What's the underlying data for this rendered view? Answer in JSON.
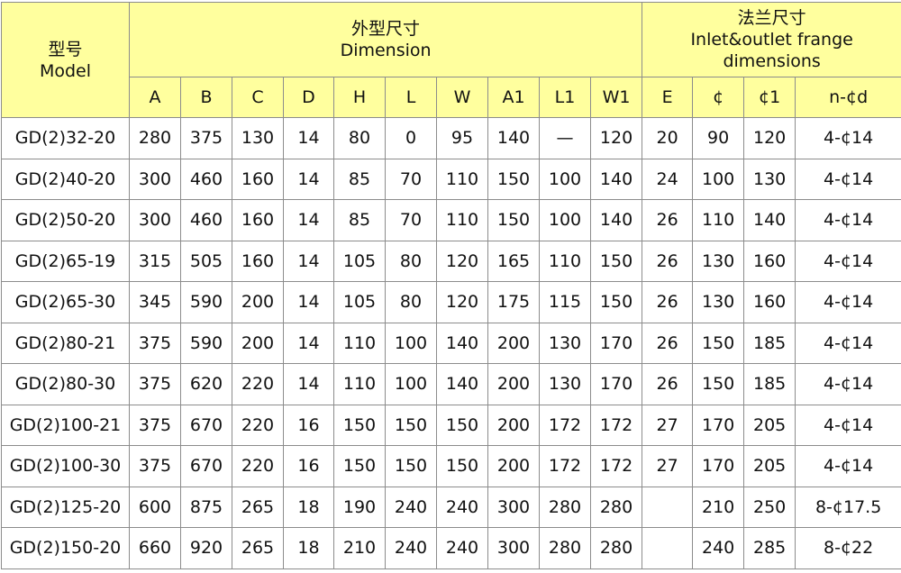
{
  "header": {
    "model_cn": "型号",
    "model_en": "Model",
    "dimension_cn": "外型尺寸",
    "dimension_en": "Dimension",
    "flange_cn": "法兰尺寸",
    "flange_en1": "Inlet&outlet frange",
    "flange_en2": "dimensions",
    "columns": [
      "A",
      "B",
      "C",
      "D",
      "H",
      "L",
      "W",
      "A1",
      "L1",
      "W1",
      "E",
      "¢",
      "¢1",
      "n-¢d"
    ]
  },
  "colors": {
    "header_bg": "#ffff9e",
    "border": "#8c8c8c"
  },
  "rows": [
    [
      "GD(2)32-20",
      "280",
      "375",
      "130",
      "14",
      "80",
      "0",
      "95",
      "140",
      "—",
      "120",
      "20",
      "90",
      "120",
      "4-¢14"
    ],
    [
      "GD(2)40-20",
      "300",
      "460",
      "160",
      "14",
      "85",
      "70",
      "110",
      "150",
      "100",
      "140",
      "24",
      "100",
      "130",
      "4-¢14"
    ],
    [
      "GD(2)50-20",
      "300",
      "460",
      "160",
      "14",
      "85",
      "70",
      "110",
      "150",
      "100",
      "140",
      "26",
      "110",
      "140",
      "4-¢14"
    ],
    [
      "GD(2)65-19",
      "315",
      "505",
      "160",
      "14",
      "105",
      "80",
      "120",
      "165",
      "110",
      "150",
      "26",
      "130",
      "160",
      "4-¢14"
    ],
    [
      "GD(2)65-30",
      "345",
      "590",
      "200",
      "14",
      "105",
      "80",
      "120",
      "175",
      "115",
      "150",
      "26",
      "130",
      "160",
      "4-¢14"
    ],
    [
      "GD(2)80-21",
      "375",
      "590",
      "200",
      "14",
      "110",
      "100",
      "140",
      "200",
      "130",
      "170",
      "26",
      "150",
      "185",
      "4-¢14"
    ],
    [
      "GD(2)80-30",
      "375",
      "620",
      "220",
      "14",
      "110",
      "100",
      "140",
      "200",
      "130",
      "170",
      "26",
      "150",
      "185",
      "4-¢14"
    ],
    [
      "GD(2)100-21",
      "375",
      "670",
      "220",
      "16",
      "150",
      "150",
      "150",
      "200",
      "172",
      "172",
      "27",
      "170",
      "205",
      "4-¢14"
    ],
    [
      "GD(2)100-30",
      "375",
      "670",
      "220",
      "16",
      "150",
      "150",
      "150",
      "200",
      "172",
      "172",
      "27",
      "170",
      "205",
      "4-¢14"
    ],
    [
      "GD(2)125-20",
      "600",
      "875",
      "265",
      "18",
      "190",
      "240",
      "240",
      "300",
      "280",
      "280",
      "",
      "210",
      "250",
      "8-¢17.5"
    ],
    [
      "GD(2)150-20",
      "660",
      "920",
      "265",
      "18",
      "210",
      "240",
      "240",
      "300",
      "280",
      "280",
      "",
      "240",
      "285",
      "8-¢22"
    ]
  ]
}
